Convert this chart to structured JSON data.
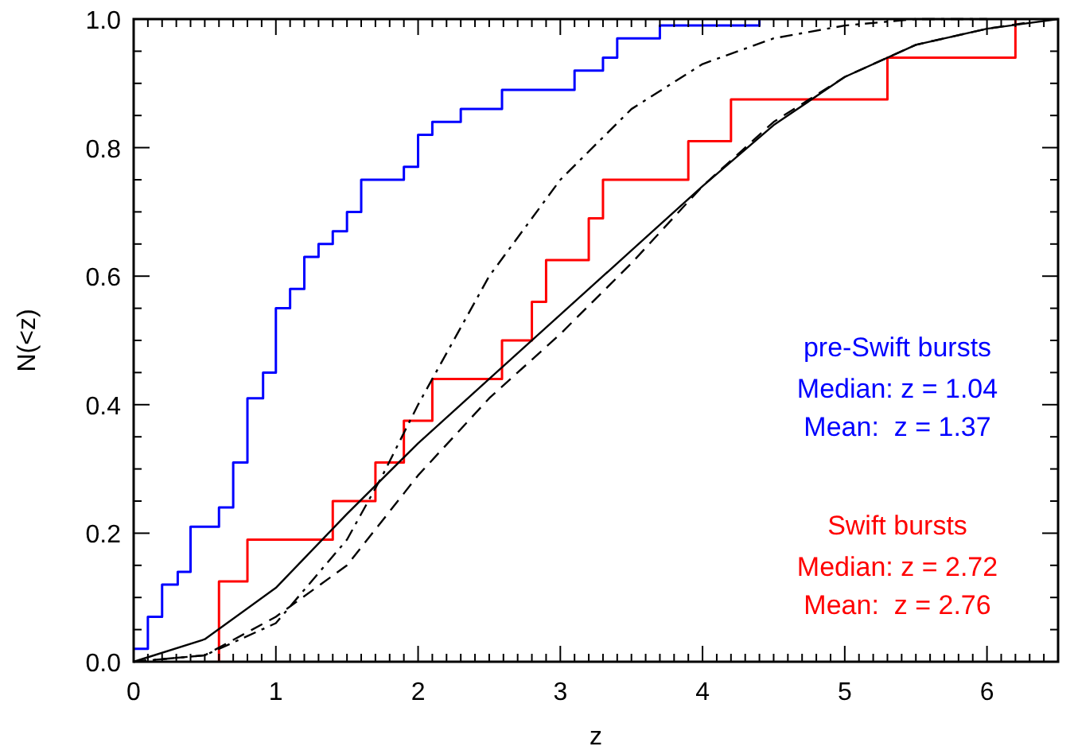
{
  "chart_data": {
    "type": "step",
    "xlabel": "z",
    "ylabel": "N(<z)",
    "xlim": [
      0,
      6.5
    ],
    "ylim": [
      0,
      1.0
    ],
    "xticks": [
      0,
      {
        "value": 0.1,
        "label": null
      },
      {
        "value": 0.2,
        "label": null
      },
      {
        "value": 0.3,
        "label": null
      },
      {
        "value": 0.4,
        "label": null
      },
      {
        "value": 0.5,
        "label": null
      },
      {
        "value": 0.6,
        "label": null
      },
      {
        "value": 0.7,
        "label": null
      },
      {
        "value": 0.8,
        "label": null
      },
      {
        "value": 0.9,
        "label": null
      },
      1,
      {
        "value": 1.1,
        "label": null
      },
      {
        "value": 1.2,
        "label": null
      },
      {
        "value": 1.3,
        "label": null
      },
      {
        "value": 1.4,
        "label": null
      },
      {
        "value": 1.5,
        "label": null
      },
      {
        "value": 1.6,
        "label": null
      },
      {
        "value": 1.7,
        "label": null
      },
      {
        "value": 1.8,
        "label": null
      },
      {
        "value": 1.9,
        "label": null
      },
      2,
      {
        "value": 2.1,
        "label": null
      },
      {
        "value": 2.2,
        "label": null
      },
      {
        "value": 2.3,
        "label": null
      },
      {
        "value": 2.4,
        "label": null
      },
      {
        "value": 2.5,
        "label": null
      },
      {
        "value": 2.6,
        "label": null
      },
      {
        "value": 2.7,
        "label": null
      },
      {
        "value": 2.8,
        "label": null
      },
      {
        "value": 2.9,
        "label": null
      },
      3,
      {
        "value": 3.1,
        "label": null
      },
      {
        "value": 3.2,
        "label": null
      },
      {
        "value": 3.3,
        "label": null
      },
      {
        "value": 3.4,
        "label": null
      },
      {
        "value": 3.5,
        "label": null
      },
      {
        "value": 3.6,
        "label": null
      },
      {
        "value": 3.7,
        "label": null
      },
      {
        "value": 3.8,
        "label": null
      },
      {
        "value": 3.9,
        "label": null
      },
      4,
      {
        "value": 4.1,
        "label": null
      },
      {
        "value": 4.2,
        "label": null
      },
      {
        "value": 4.3,
        "label": null
      },
      {
        "value": 4.4,
        "label": null
      },
      {
        "value": 4.5,
        "label": null
      },
      {
        "value": 4.6,
        "label": null
      },
      {
        "value": 4.7,
        "label": null
      },
      {
        "value": 4.8,
        "label": null
      },
      {
        "value": 4.9,
        "label": null
      },
      5,
      {
        "value": 5.1,
        "label": null
      },
      {
        "value": 5.2,
        "label": null
      },
      {
        "value": 5.3,
        "label": null
      },
      {
        "value": 5.4,
        "label": null
      },
      {
        "value": 5.5,
        "label": null
      },
      {
        "value": 5.6,
        "label": null
      },
      {
        "value": 5.7,
        "label": null
      },
      {
        "value": 5.8,
        "label": null
      },
      {
        "value": 5.9,
        "label": null
      },
      6,
      {
        "value": 6.1,
        "label": null
      },
      {
        "value": 6.2,
        "label": null
      },
      {
        "value": 6.3,
        "label": null
      },
      {
        "value": 6.4,
        "label": null
      }
    ],
    "yticks": [
      {
        "value": 0,
        "label": "0.0"
      },
      {
        "value": 0.05,
        "label": null
      },
      {
        "value": 0.1,
        "label": null
      },
      {
        "value": 0.15,
        "label": null
      },
      {
        "value": 0.2,
        "label": "0.2"
      },
      {
        "value": 0.25,
        "label": null
      },
      {
        "value": 0.3,
        "label": null
      },
      {
        "value": 0.35,
        "label": null
      },
      {
        "value": 0.4,
        "label": "0.4"
      },
      {
        "value": 0.45,
        "label": null
      },
      {
        "value": 0.5,
        "label": null
      },
      {
        "value": 0.55,
        "label": null
      },
      {
        "value": 0.6,
        "label": "0.6"
      },
      {
        "value": 0.65,
        "label": null
      },
      {
        "value": 0.7,
        "label": null
      },
      {
        "value": 0.75,
        "label": null
      },
      {
        "value": 0.8,
        "label": "0.8"
      },
      {
        "value": 0.85,
        "label": null
      },
      {
        "value": 0.9,
        "label": null
      },
      {
        "value": 0.95,
        "label": null
      },
      {
        "value": 1.0,
        "label": "1.0"
      }
    ],
    "grid": false,
    "series": [
      {
        "color": "#0000ff",
        "x": [
          0,
          0.1,
          0.2,
          0.31,
          0.4,
          0.6,
          0.7,
          0.8,
          0.91,
          1.0,
          1.1,
          1.2,
          1.3,
          1.4,
          1.5,
          1.6,
          1.9,
          2.0,
          2.1,
          2.3,
          2.59,
          3.1,
          3.3,
          3.4,
          3.7,
          4.4
        ],
        "values": [
          0.02,
          0.07,
          0.12,
          0.14,
          0.21,
          0.24,
          0.31,
          0.41,
          0.45,
          0.55,
          0.58,
          0.63,
          0.65,
          0.67,
          0.7,
          0.75,
          0.77,
          0.82,
          0.84,
          0.86,
          0.89,
          0.92,
          0.94,
          0.97,
          0.99,
          1.0
        ]
      },
      {
        "color": "#ff0000",
        "x": [
          0.6,
          0.6,
          0.8,
          1.4,
          1.7,
          1.9,
          2.1,
          2.59,
          2.8,
          2.9,
          3.2,
          3.3,
          3.9,
          4.2,
          5.3,
          6.2
        ],
        "values": [
          0,
          0.125,
          0.19,
          0.25,
          0.31,
          0.375,
          0.44,
          0.5,
          0.56,
          0.625,
          0.69,
          0.75,
          0.81,
          0.875,
          0.94,
          1.0
        ]
      },
      {
        "type": "line",
        "color": "#000000",
        "line_style": "solid",
        "x": [
          0,
          0.5,
          1.0,
          1.5,
          2.0,
          2.5,
          3.0,
          3.5,
          4.0,
          4.5,
          5.0,
          5.5,
          6.0,
          6.5
        ],
        "values": [
          0,
          0.035,
          0.115,
          0.23,
          0.34,
          0.44,
          0.54,
          0.64,
          0.74,
          0.835,
          0.91,
          0.96,
          0.985,
          1.0
        ]
      },
      {
        "type": "line",
        "color": "#000000",
        "line_style": "dashed",
        "x": [
          0,
          0.5,
          1.0,
          1.5,
          2.0,
          2.5,
          3.0,
          3.5,
          4.0,
          4.5,
          5.0,
          5.5,
          6.0,
          6.3
        ],
        "values": [
          0,
          0.01,
          0.07,
          0.15,
          0.29,
          0.41,
          0.51,
          0.62,
          0.74,
          0.84,
          0.91,
          0.96,
          0.985,
          0.995
        ]
      },
      {
        "type": "line",
        "color": "#000000",
        "line_style": "dashdot",
        "x": [
          0,
          0.5,
          1.0,
          1.5,
          1.75,
          2.0,
          2.25,
          2.5,
          3.0,
          3.5,
          4.0,
          4.5,
          5.0,
          5.5,
          6.0
        ],
        "values": [
          0,
          0.01,
          0.06,
          0.19,
          0.29,
          0.4,
          0.5,
          0.6,
          0.75,
          0.86,
          0.93,
          0.97,
          0.99,
          1.0,
          1.0
        ]
      }
    ],
    "annotations": [
      "pre-Swift bursts",
      "Median: z = 1.04",
      "Mean:  z = 1.37",
      "Swift bursts",
      "Median: z = 2.72",
      "Mean:  z = 2.76"
    ]
  }
}
